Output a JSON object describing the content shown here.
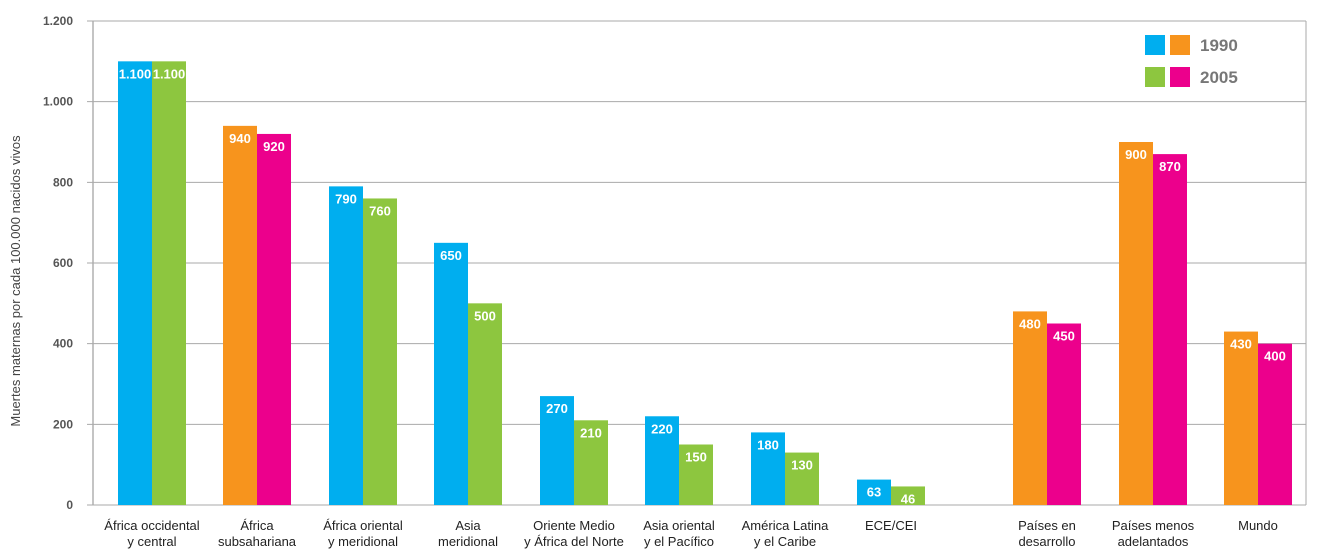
{
  "chart_data": {
    "type": "bar",
    "ylabel": "Muertes maternas por cada 100.000 nacidos vivos",
    "ylim": [
      0,
      1200
    ],
    "yticks": [
      0,
      200,
      400,
      600,
      800,
      1000,
      1200
    ],
    "ytick_labels": [
      "0",
      "200",
      "400",
      "600",
      "800",
      "1.000",
      "1.200"
    ],
    "grid": true,
    "legend_position": "top-right",
    "legend": [
      {
        "label": "1990",
        "colors": [
          "#00AEEF",
          "#F7941D"
        ]
      },
      {
        "label": "2005",
        "colors": [
          "#8DC63F",
          "#EC008C"
        ]
      }
    ],
    "colors": {
      "regional_1990": "#00AEEF",
      "regional_2005": "#8DC63F",
      "aggregate_1990": "#F7941D",
      "aggregate_2005": "#EC008C",
      "grid": "#aaaaaa"
    },
    "categories": [
      {
        "label": [
          "África occidental",
          "y central"
        ],
        "group": "regional",
        "v1990": 1100,
        "v2005": 1100,
        "l1990": "1.100",
        "l2005": "1.100"
      },
      {
        "label": [
          "África",
          "subsahariana"
        ],
        "group": "aggregate",
        "v1990": 940,
        "v2005": 920,
        "l1990": "940",
        "l2005": "920"
      },
      {
        "label": [
          "África oriental",
          "y meridional"
        ],
        "group": "regional",
        "v1990": 790,
        "v2005": 760,
        "l1990": "790",
        "l2005": "760"
      },
      {
        "label": [
          "Asia",
          "meridional"
        ],
        "group": "regional",
        "v1990": 650,
        "v2005": 500,
        "l1990": "650",
        "l2005": "500"
      },
      {
        "label": [
          "Oriente Medio",
          "y África del Norte"
        ],
        "group": "regional",
        "v1990": 270,
        "v2005": 210,
        "l1990": "270",
        "l2005": "210"
      },
      {
        "label": [
          "Asia oriental",
          "y el Pacífico"
        ],
        "group": "regional",
        "v1990": 220,
        "v2005": 150,
        "l1990": "220",
        "l2005": "150"
      },
      {
        "label": [
          "América Latina",
          "y el Caribe"
        ],
        "group": "regional",
        "v1990": 180,
        "v2005": 130,
        "l1990": "180",
        "l2005": "130"
      },
      {
        "label": [
          "ECE/CEI"
        ],
        "group": "regional",
        "v1990": 63,
        "v2005": 46,
        "l1990": "63",
        "l2005": "46"
      },
      {
        "label": [
          "Países en",
          "desarrollo"
        ],
        "group": "aggregate",
        "v1990": 480,
        "v2005": 450,
        "l1990": "480",
        "l2005": "450"
      },
      {
        "label": [
          "Países menos",
          "adelantados"
        ],
        "group": "aggregate",
        "v1990": 900,
        "v2005": 870,
        "l1990": "900",
        "l2005": "870"
      },
      {
        "label": [
          "Mundo"
        ],
        "group": "aggregate",
        "v1990": 430,
        "v2005": 400,
        "l1990": "430",
        "l2005": "400"
      }
    ]
  }
}
